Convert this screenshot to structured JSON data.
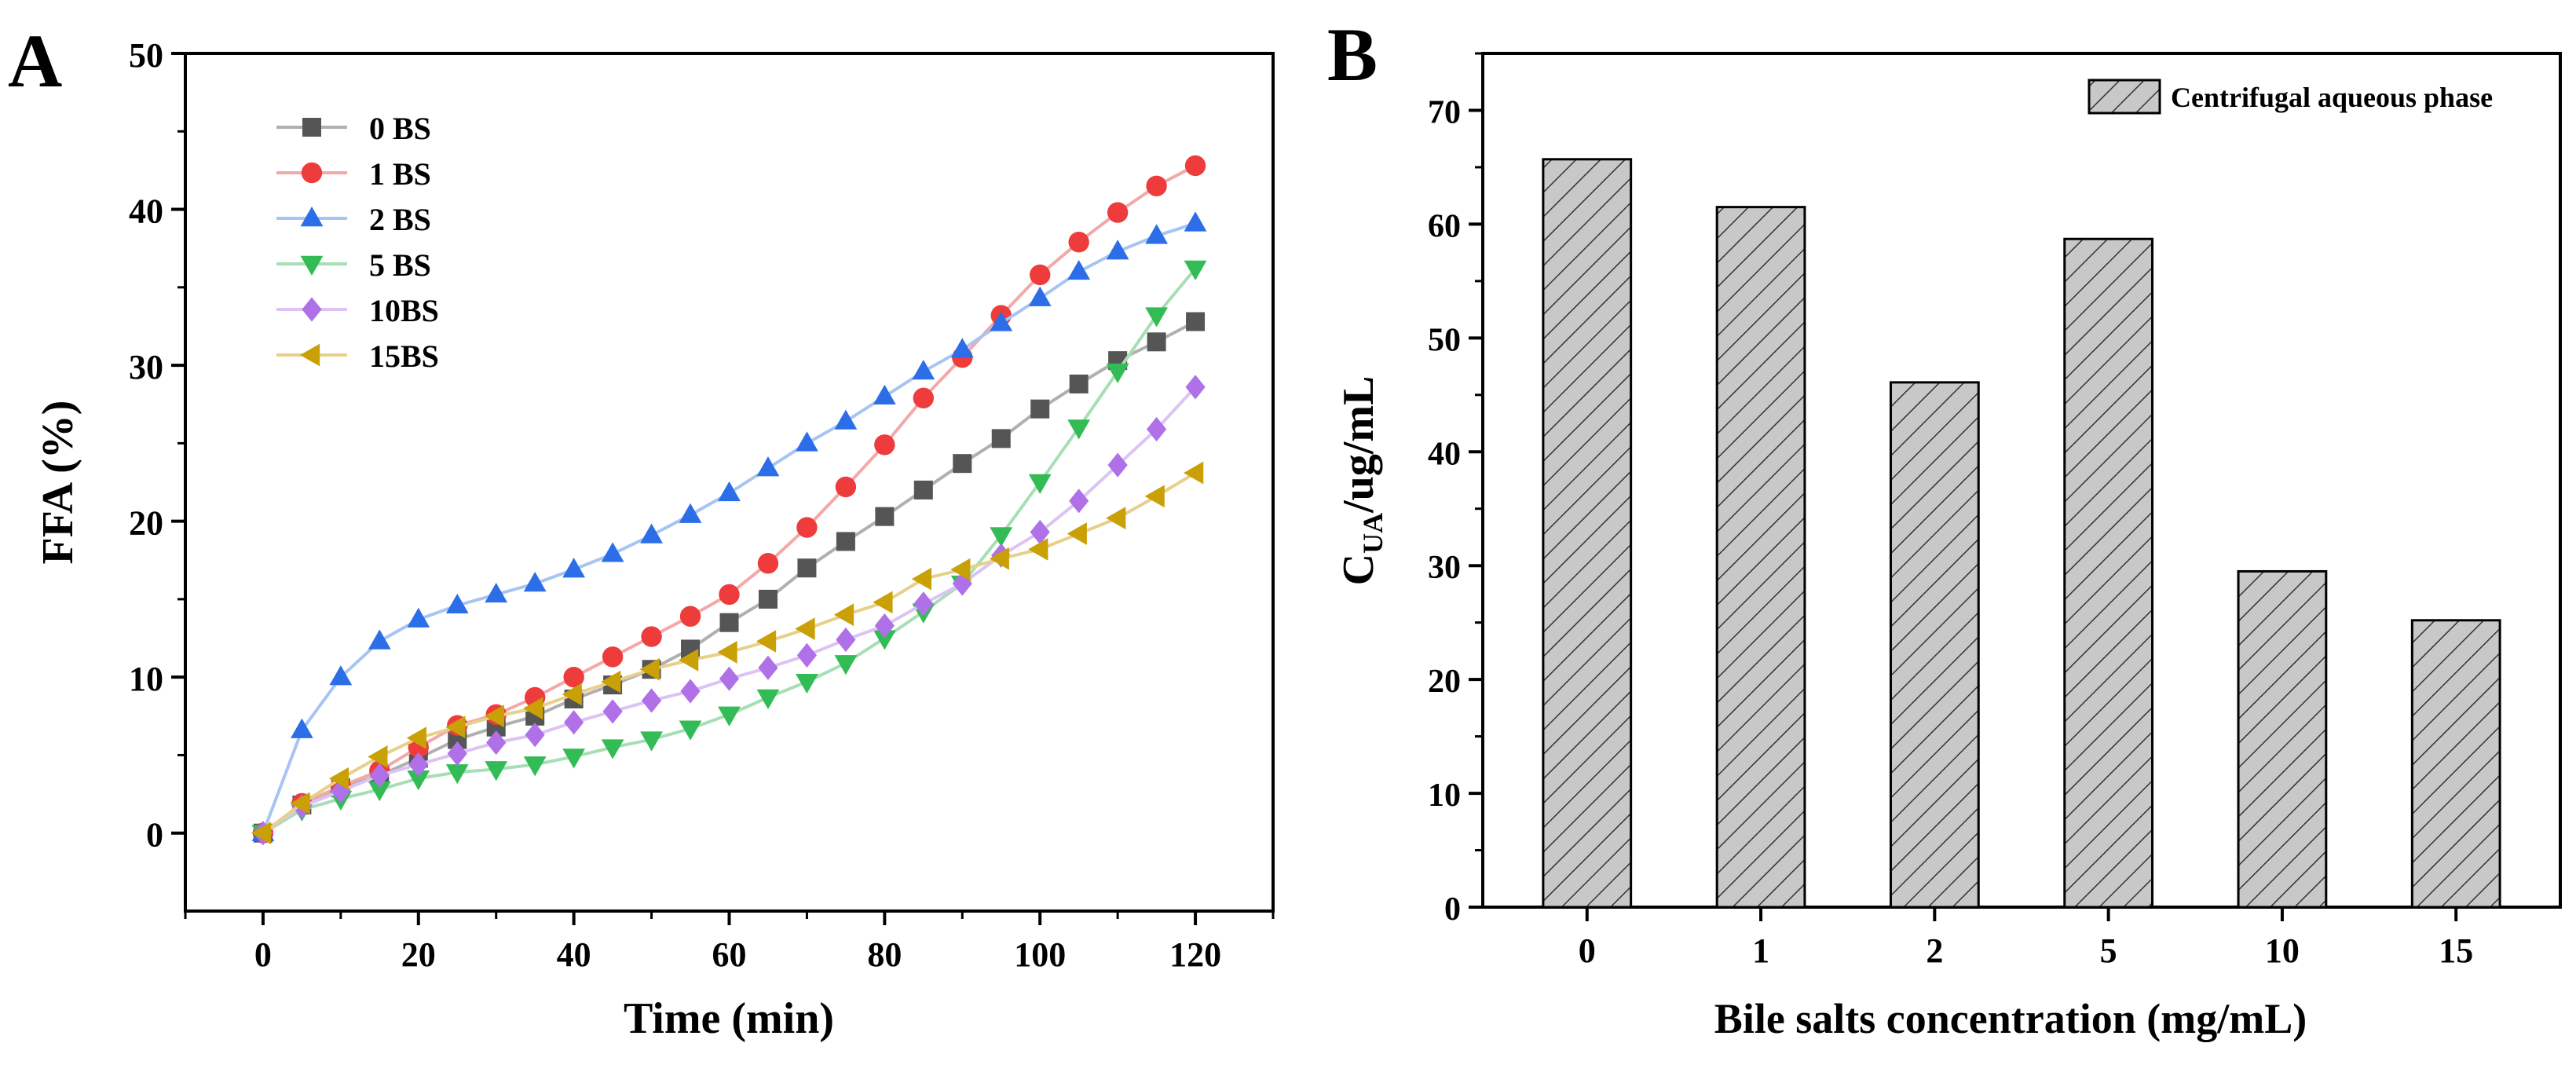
{
  "chart_data": [
    {
      "panel_label": "A",
      "type": "line",
      "xlabel": "Time (min)",
      "ylabel": "FFA (%)",
      "xlim": [
        -10,
        130
      ],
      "ylim": [
        -5,
        50
      ],
      "xticks": [
        0,
        20,
        40,
        60,
        80,
        100,
        120
      ],
      "yticks": [
        0,
        10,
        20,
        30,
        40,
        50
      ],
      "x": [
        0,
        5,
        10,
        15,
        20,
        25,
        30,
        35,
        40,
        45,
        50,
        55,
        60,
        65,
        70,
        75,
        80,
        85,
        90,
        95,
        100,
        105,
        110,
        115,
        120
      ],
      "series": [
        {
          "name": "0 BS",
          "marker": "square",
          "color": "#555555",
          "line_color": "#b0b0b0",
          "values": [
            0,
            1.8,
            2.9,
            3.7,
            4.8,
            6.0,
            6.8,
            7.5,
            8.6,
            9.5,
            10.5,
            11.8,
            13.5,
            15.0,
            17.0,
            18.7,
            20.3,
            22.0,
            23.7,
            25.3,
            27.2,
            28.8,
            30.3,
            31.5,
            32.8
          ]
        },
        {
          "name": "1 BS",
          "marker": "circle",
          "color": "#ee3b3b",
          "line_color": "#f4a8a8",
          "values": [
            0,
            1.9,
            3.0,
            4.0,
            5.5,
            6.9,
            7.6,
            8.7,
            10.0,
            11.3,
            12.6,
            13.9,
            15.3,
            17.3,
            19.6,
            22.2,
            24.9,
            27.9,
            30.5,
            33.2,
            35.8,
            37.9,
            39.8,
            41.5,
            42.8
          ]
        },
        {
          "name": "2 BS",
          "marker": "triangle-up",
          "color": "#2b6ee8",
          "line_color": "#a8c4f2",
          "values": [
            0,
            6.6,
            10.0,
            12.3,
            13.7,
            14.6,
            15.3,
            16.0,
            16.9,
            17.9,
            19.1,
            20.4,
            21.8,
            23.4,
            25.0,
            26.4,
            28.0,
            29.6,
            31.0,
            32.7,
            34.3,
            36.0,
            37.3,
            38.3,
            39.1
          ]
        },
        {
          "name": "5 BS",
          "marker": "triangle-down",
          "color": "#33bb55",
          "line_color": "#a6dfb3",
          "values": [
            0,
            1.5,
            2.2,
            2.8,
            3.5,
            3.9,
            4.1,
            4.4,
            4.9,
            5.5,
            6.0,
            6.7,
            7.6,
            8.7,
            9.7,
            10.9,
            12.5,
            14.2,
            16.0,
            19.1,
            22.5,
            26.0,
            29.6,
            33.2,
            36.2
          ]
        },
        {
          "name": "10BS",
          "marker": "diamond",
          "color": "#b070e8",
          "line_color": "#dcc3f4",
          "values": [
            0,
            1.7,
            2.7,
            3.7,
            4.4,
            5.1,
            5.8,
            6.3,
            7.1,
            7.8,
            8.5,
            9.1,
            9.9,
            10.6,
            11.4,
            12.4,
            13.3,
            14.7,
            16.0,
            17.8,
            19.3,
            21.3,
            23.6,
            25.9,
            28.6
          ]
        },
        {
          "name": "15BS",
          "marker": "triangle-left",
          "color": "#c9a106",
          "line_color": "#e6d08a",
          "values": [
            0,
            1.9,
            3.5,
            4.9,
            6.1,
            6.8,
            7.5,
            8.0,
            8.9,
            9.7,
            10.5,
            11.1,
            11.6,
            12.3,
            13.1,
            14.0,
            14.8,
            16.3,
            16.9,
            17.6,
            18.2,
            19.2,
            20.2,
            21.6,
            23.1
          ]
        }
      ],
      "legend_position": "top-left"
    },
    {
      "panel_label": "B",
      "type": "bar",
      "xlabel": "Bile salts concentration (mg/mL)",
      "ylabel_main": "C",
      "ylabel_sub": "UA",
      "ylabel_rest": "/ug/mL",
      "categories": [
        "0",
        "1",
        "2",
        "5",
        "10",
        "15"
      ],
      "values": [
        65.7,
        61.5,
        46.1,
        58.7,
        29.5,
        25.2
      ],
      "ylim": [
        0,
        75
      ],
      "yticks": [
        0,
        10,
        20,
        30,
        40,
        50,
        60,
        70
      ],
      "legend": "Centrifugal aqueous phase",
      "legend_position": "top-right",
      "bar_fill": "#c8c8c8",
      "hatch": "diagonal"
    }
  ]
}
